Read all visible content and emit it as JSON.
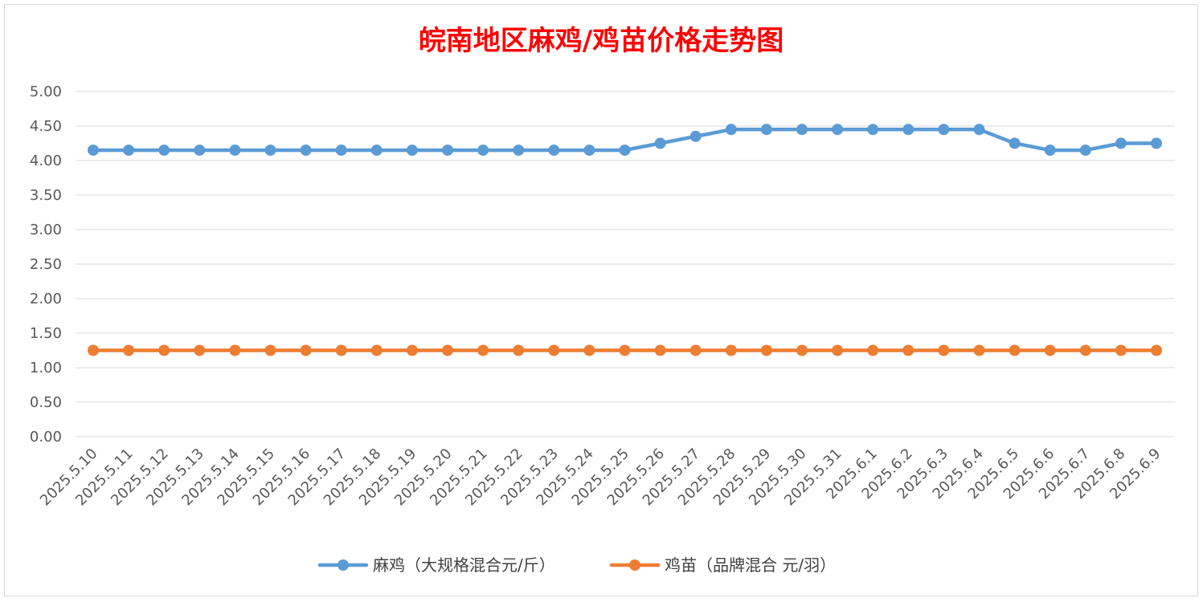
{
  "chart_data": {
    "type": "line",
    "title": "皖南地区麻鸡/鸡苗价格走势图",
    "categories": [
      "2025.5.10",
      "2025.5.11",
      "2025.5.12",
      "2025.5.13",
      "2025.5.14",
      "2025.5.15",
      "2025.5.16",
      "2025.5.17",
      "2025.5.18",
      "2025.5.19",
      "2025.5.20",
      "2025.5.21",
      "2025.5.22",
      "2025.5.23",
      "2025.5.24",
      "2025.5.25",
      "2025.5.26",
      "2025.5.27",
      "2025.5.28",
      "2025.5.29",
      "2025.5.30",
      "2025.5.31",
      "2025.6.1",
      "2025.6.2",
      "2025.6.3",
      "2025.6.4",
      "2025.6.5",
      "2025.6.6",
      "2025.6.7",
      "2025.6.8",
      "2025.6.9"
    ],
    "series": [
      {
        "name": "麻鸡（大规格混合元/斤）",
        "color": "#5b9bd5",
        "values": [
          4.15,
          4.15,
          4.15,
          4.15,
          4.15,
          4.15,
          4.15,
          4.15,
          4.15,
          4.15,
          4.15,
          4.15,
          4.15,
          4.15,
          4.15,
          4.15,
          4.25,
          4.35,
          4.45,
          4.45,
          4.45,
          4.45,
          4.45,
          4.45,
          4.45,
          4.45,
          4.25,
          4.15,
          4.15,
          4.25,
          4.25
        ]
      },
      {
        "name": "鸡苗（品牌混合 元/羽）",
        "color": "#ed7d31",
        "values": [
          1.25,
          1.25,
          1.25,
          1.25,
          1.25,
          1.25,
          1.25,
          1.25,
          1.25,
          1.25,
          1.25,
          1.25,
          1.25,
          1.25,
          1.25,
          1.25,
          1.25,
          1.25,
          1.25,
          1.25,
          1.25,
          1.25,
          1.25,
          1.25,
          1.25,
          1.25,
          1.25,
          1.25,
          1.25,
          1.25,
          1.25
        ]
      }
    ],
    "ylim": [
      0,
      5
    ],
    "yticks": [
      "0.00",
      "0.50",
      "1.00",
      "1.50",
      "2.00",
      "2.50",
      "3.00",
      "3.50",
      "4.00",
      "4.50",
      "5.00"
    ],
    "grid": true,
    "legend_position": "bottom"
  }
}
